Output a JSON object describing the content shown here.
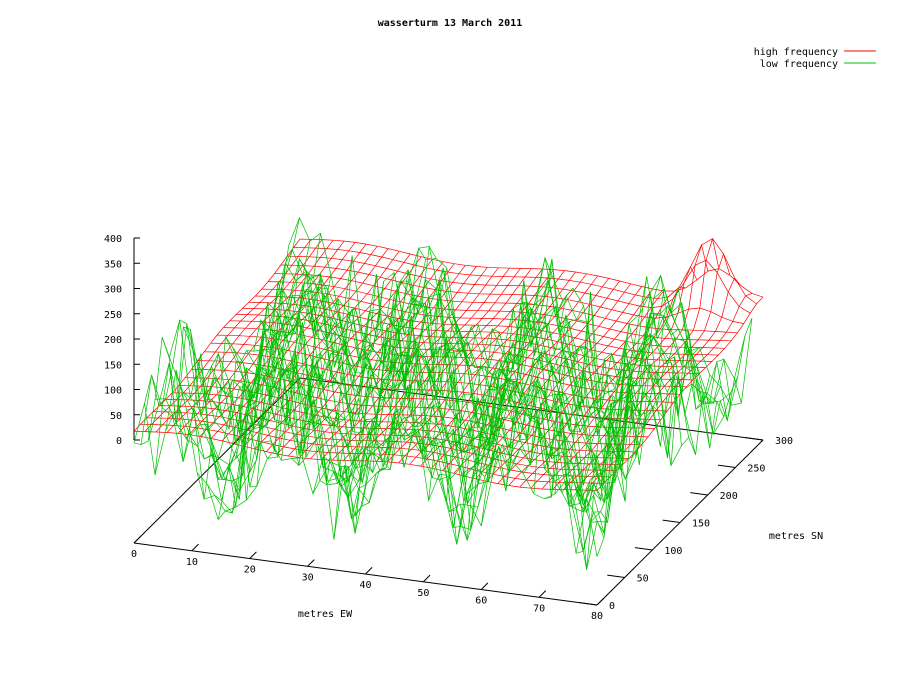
{
  "chart_data": {
    "type": "surface",
    "title": "wasserturm 13 March 2011",
    "xlabel": "metres EW",
    "ylabel": "metres SN",
    "zlabel": "",
    "xlim": [
      0,
      80
    ],
    "ylim": [
      0,
      300
    ],
    "zlim": [
      0,
      400
    ],
    "x_ticks": [
      "0",
      "10",
      "20",
      "30",
      "40",
      "50",
      "60",
      "70",
      "80"
    ],
    "y_ticks": [
      "0",
      "50",
      "100",
      "150",
      "200",
      "250",
      "300"
    ],
    "z_ticks": [
      "0",
      "50",
      "100",
      "150",
      "200",
      "250",
      "300",
      "350",
      "400"
    ],
    "legend_position": "top-right",
    "grid": false,
    "series": [
      {
        "name": "high frequency",
        "color": "#ff0000",
        "style": "smooth mesh, mostly 200-260, rising to ~390 near x=70 y=280"
      },
      {
        "name": "low frequency",
        "color": "#00c000",
        "style": "noisy mesh, mostly 50-350 with strong spikes"
      }
    ]
  }
}
